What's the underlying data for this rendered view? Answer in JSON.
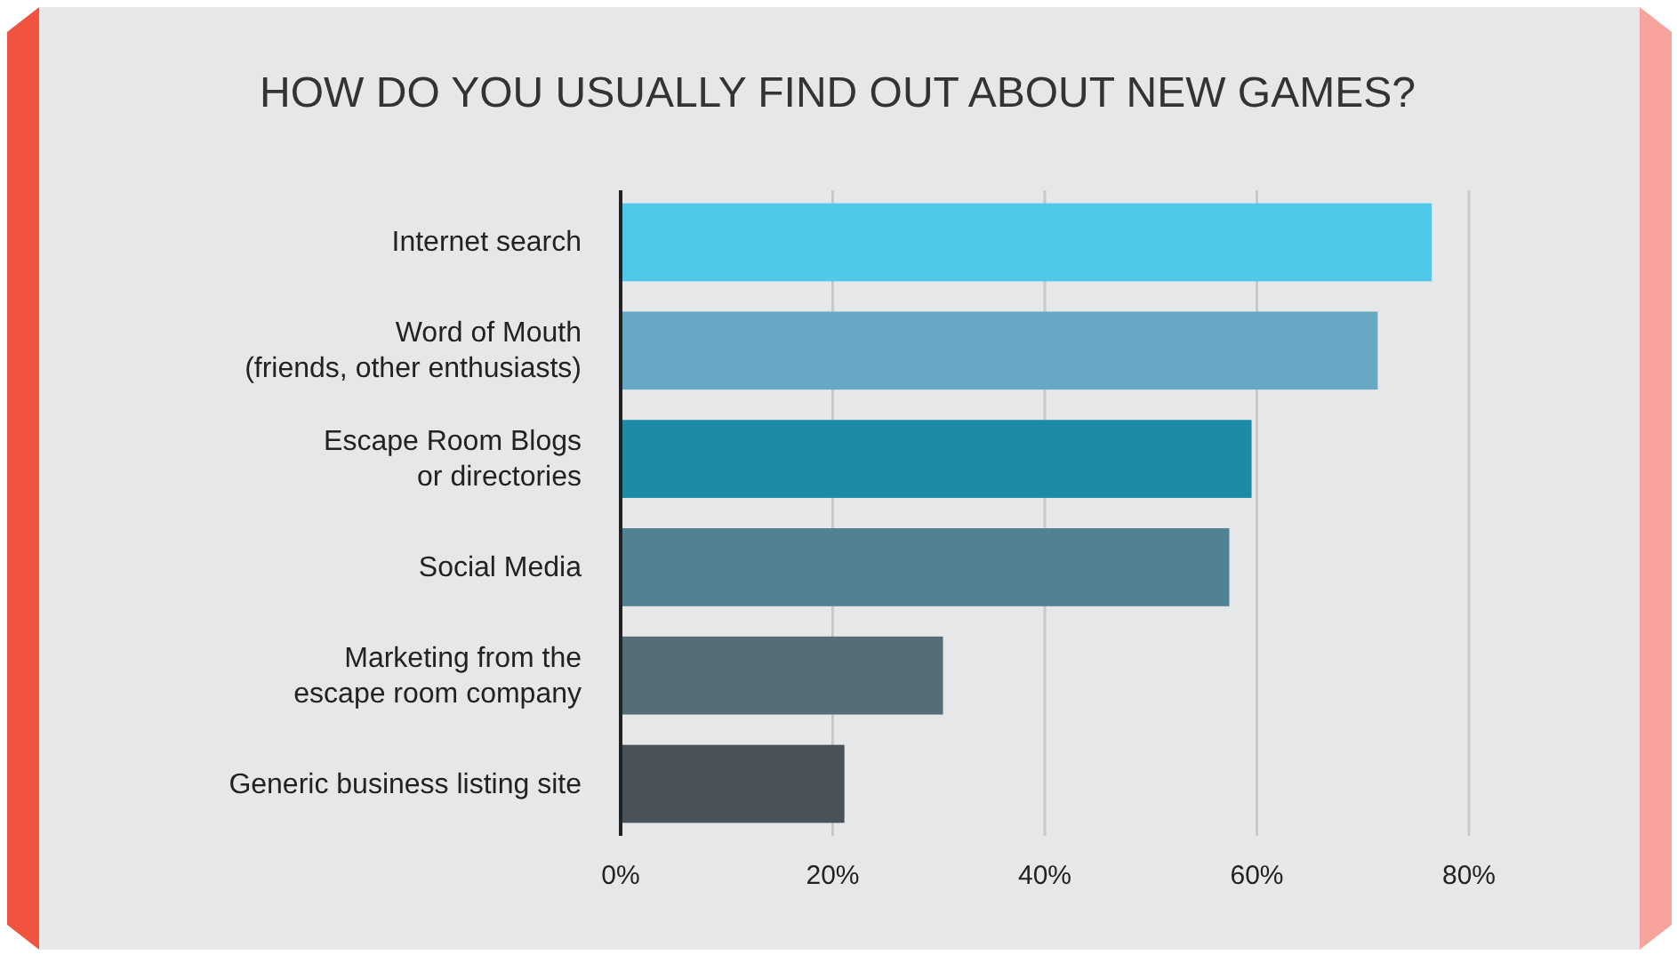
{
  "chart_data": {
    "type": "bar",
    "orientation": "horizontal",
    "title": "HOW DO YOU USUALLY FIND OUT ABOUT NEW GAMES?",
    "categories": [
      "Internet search",
      "Word of Mouth\n(friends, other enthusiasts)",
      "Escape Room Blogs\nor directories",
      "Social Media",
      "Marketing from the\nescape room company",
      "Generic business listing site"
    ],
    "values": [
      76.5,
      71.4,
      59.5,
      57.4,
      30.4,
      21.1
    ],
    "colors": [
      "#4fc8ea",
      "#67a9c4",
      "#1e8ba6",
      "#508294",
      "#566d78",
      "#495259"
    ],
    "xlim": [
      0,
      80
    ],
    "xticks": [
      {
        "value": 0,
        "label": "0%"
      },
      {
        "value": 20,
        "label": "20%"
      },
      {
        "value": 40,
        "label": "40%"
      },
      {
        "value": 60,
        "label": "60%"
      },
      {
        "value": 80,
        "label": "80%"
      }
    ],
    "grid": "x"
  }
}
